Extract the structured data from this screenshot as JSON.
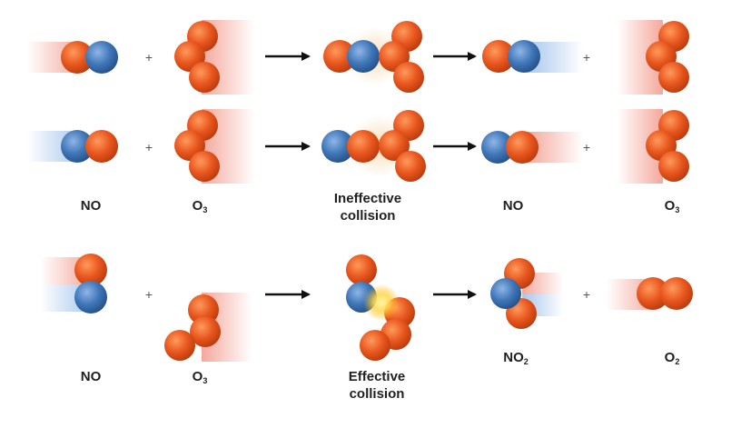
{
  "colors": {
    "oxygen": "#e4551f",
    "nitrogen": "#3f76b8",
    "arrow": "#111111",
    "label": "#1f1f1f"
  },
  "symbols": {
    "plus": "+",
    "arrow": "arrow-icon"
  },
  "labels": {
    "no_1": {
      "main": "NO",
      "sub": ""
    },
    "o3_1": {
      "main": "O",
      "sub": "3"
    },
    "ineffective": {
      "line1": "Ineffective",
      "line2": "collision"
    },
    "no_2": {
      "main": "NO",
      "sub": ""
    },
    "o3_2": {
      "main": "O",
      "sub": "3"
    },
    "no_3": {
      "main": "NO",
      "sub": ""
    },
    "o3_3": {
      "main": "O",
      "sub": "3"
    },
    "effective": {
      "line1": "Effective",
      "line2": "collision"
    },
    "no2": {
      "main": "NO",
      "sub": "2"
    },
    "o2": {
      "main": "O",
      "sub": "2"
    }
  }
}
